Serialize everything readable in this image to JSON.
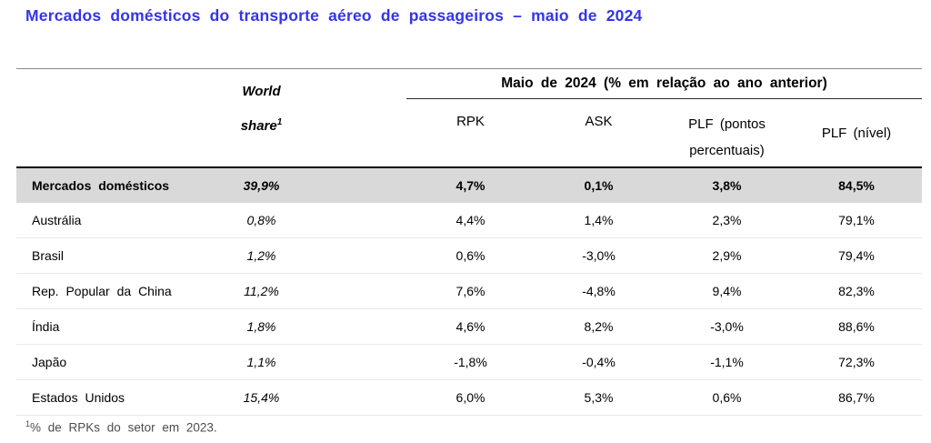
{
  "page": {
    "title": "Mercados domésticos do transporte aéreo de passageiros – maio de 2024"
  },
  "colors": {
    "title_blue": "#3434EC",
    "highlight_row_bg": "#D9D9D9",
    "row_separator": "#E7E9EC",
    "header_rule": "#000000"
  },
  "table": {
    "world_share_header": {
      "line1": "World",
      "line2": "share",
      "sup": "1"
    },
    "group_header": "Maio de 2024 (% em relação ao ano anterior)",
    "sub_headers": {
      "rpk": "RPK",
      "ask": "ASK",
      "plf_pp_line1": "PLF (pontos",
      "plf_pp_line2": "percentuais)",
      "plf_level": "PLF (nível)"
    },
    "rows": [
      {
        "market": "Mercados domésticos",
        "world_share": "39,9%",
        "rpk": "4,7%",
        "ask": "0,1%",
        "plf_pp": "3,8%",
        "plf_level": "84,5%"
      },
      {
        "market": "Austrália",
        "world_share": "0,8%",
        "rpk": "4,4%",
        "ask": "1,4%",
        "plf_pp": "2,3%",
        "plf_level": "79,1%"
      },
      {
        "market": "Brasil",
        "world_share": "1,2%",
        "rpk": "0,6%",
        "ask": "-3,0%",
        "plf_pp": "2,9%",
        "plf_level": "79,4%"
      },
      {
        "market": "Rep. Popular da China",
        "world_share": "11,2%",
        "rpk": "7,6%",
        "ask": "-4,8%",
        "plf_pp": "9,4%",
        "plf_level": "82,3%"
      },
      {
        "market": "Índia",
        "world_share": "1,8%",
        "rpk": "4,6%",
        "ask": "8,2%",
        "plf_pp": "-3,0%",
        "plf_level": "88,6%"
      },
      {
        "market": "Japão",
        "world_share": "1,1%",
        "rpk": "-1,8%",
        "ask": "-0,4%",
        "plf_pp": "-1,1%",
        "plf_level": "72,3%"
      },
      {
        "market": "Estados Unidos",
        "world_share": "15,4%",
        "rpk": "6,0%",
        "ask": "5,3%",
        "plf_pp": "0,6%",
        "plf_level": "86,7%"
      }
    ]
  },
  "footnote": {
    "sup": "1",
    "text": "% de RPKs do setor em 2023."
  }
}
